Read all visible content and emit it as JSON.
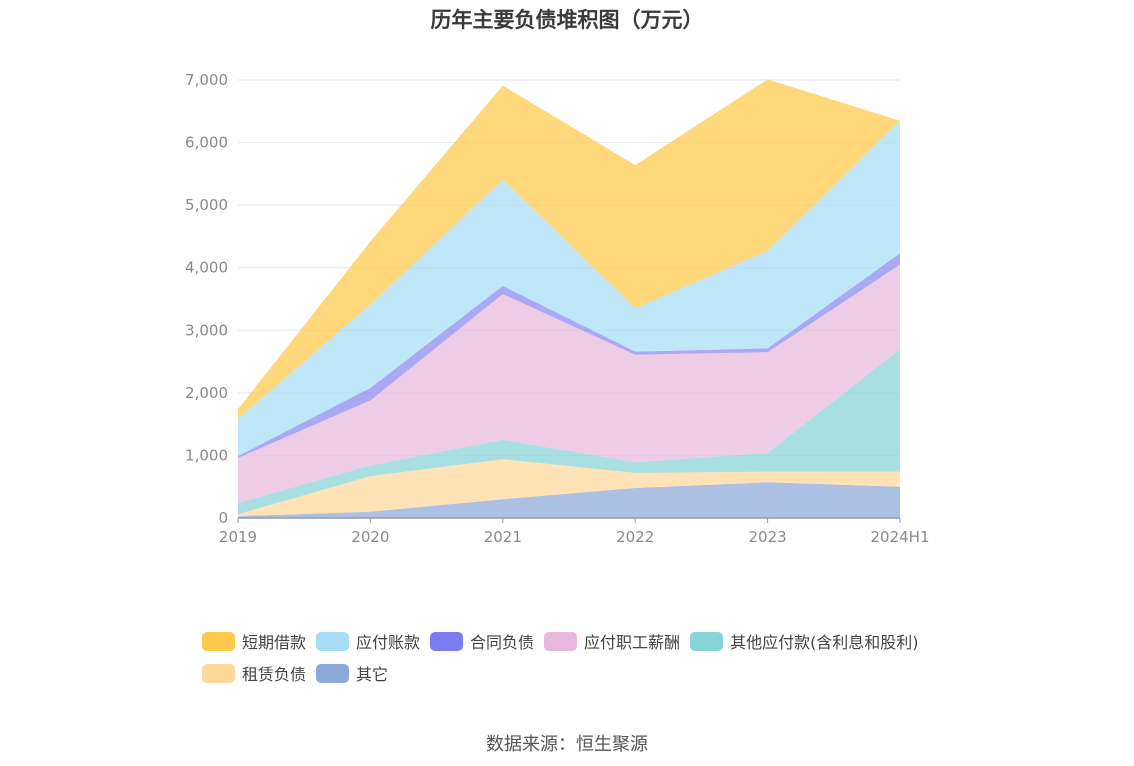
{
  "chart_data": {
    "type": "area",
    "stacked": true,
    "title": "历年主要负债堆积图（万元）",
    "categories": [
      "2019",
      "2020",
      "2021",
      "2022",
      "2023",
      "2024H1"
    ],
    "ylim": [
      0,
      7000
    ],
    "yticks": [
      "0",
      "1,000",
      "2,000",
      "3,000",
      "4,000",
      "5,000",
      "6,000",
      "7,000"
    ],
    "grid": true,
    "legend_position": "bottom",
    "series": [
      {
        "name": "其它",
        "color": "#8aa8d8",
        "values": [
          30,
          100,
          300,
          480,
          570,
          500
        ]
      },
      {
        "name": "租赁负债",
        "color": "#ffd89a",
        "values": [
          30,
          570,
          640,
          240,
          170,
          240
        ]
      },
      {
        "name": "其他应付款(含利息和股利)",
        "color": "#86d4d6",
        "values": [
          180,
          170,
          310,
          170,
          300,
          1960
        ]
      },
      {
        "name": "应付职工薪酬",
        "color": "#e8b8dc",
        "values": [
          720,
          1040,
          2330,
          1720,
          1610,
          1350
        ]
      },
      {
        "name": "合同负债",
        "color": "#8a86f0",
        "values": [
          30,
          200,
          130,
          50,
          60,
          180
        ]
      },
      {
        "name": "应付账款",
        "color": "#a8dcf6",
        "values": [
          600,
          1330,
          1700,
          690,
          1560,
          2120
        ]
      },
      {
        "name": "短期借款",
        "color": "#ffc94a",
        "values": [
          150,
          1010,
          1500,
          2290,
          2740,
          0
        ]
      }
    ]
  },
  "legend": {
    "items": [
      {
        "label": "短期借款",
        "color": "#ffc94a"
      },
      {
        "label": "应付账款",
        "color": "#a8dcf6"
      },
      {
        "label": "合同负债",
        "color": "#7c7cf0"
      },
      {
        "label": "应付职工薪酬",
        "color": "#e8b8dc"
      },
      {
        "label": "其他应付款(含利息和股利)",
        "color": "#86d4d6"
      },
      {
        "label": "租赁负债",
        "color": "#ffd89a"
      },
      {
        "label": "其它",
        "color": "#8aa8d8"
      }
    ]
  },
  "source": "数据来源：恒生聚源"
}
